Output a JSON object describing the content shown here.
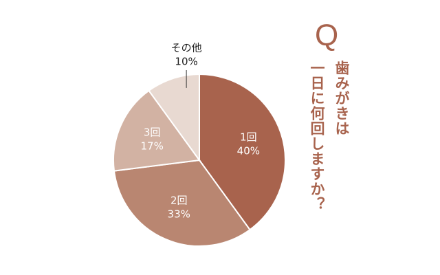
{
  "chart_data": {
    "type": "pie",
    "title_mark": "Q",
    "title_lines": [
      "歯みがきは",
      "一日に何回しますか？"
    ],
    "categories": [
      "1回",
      "2回",
      "3回",
      "その他"
    ],
    "values": [
      40,
      33,
      17,
      10
    ],
    "value_labels": [
      "40%",
      "33%",
      "17%",
      "10%"
    ],
    "colors": [
      "#a8634d",
      "#b98671",
      "#d2b2a3",
      "#e8d9d1"
    ]
  }
}
